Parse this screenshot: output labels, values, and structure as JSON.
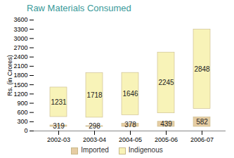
{
  "chart_data": {
    "type": "bar",
    "title": "Raw Materials Consumed",
    "y_label": "Rs. (in Crores)",
    "categories": [
      "2002-03",
      "2003-04",
      "2004-05",
      "2005-06",
      "2006-07"
    ],
    "series": [
      {
        "name": "Imported",
        "color": "#e6cda3",
        "values": [
          319,
          298,
          378,
          439,
          582
        ]
      },
      {
        "name": "Indigenous",
        "color": "#f8f3b8",
        "values": [
          1231,
          1718,
          1646,
          2245,
          2848
        ]
      }
    ],
    "ylim": [
      0,
      3600
    ],
    "yticks": [
      0,
      300,
      600,
      900,
      1200,
      1500,
      1800,
      2100,
      2400,
      2700,
      3000,
      3300,
      3600
    ],
    "stacked": true,
    "data_labels": true,
    "grid": false,
    "legend": "bottom"
  }
}
